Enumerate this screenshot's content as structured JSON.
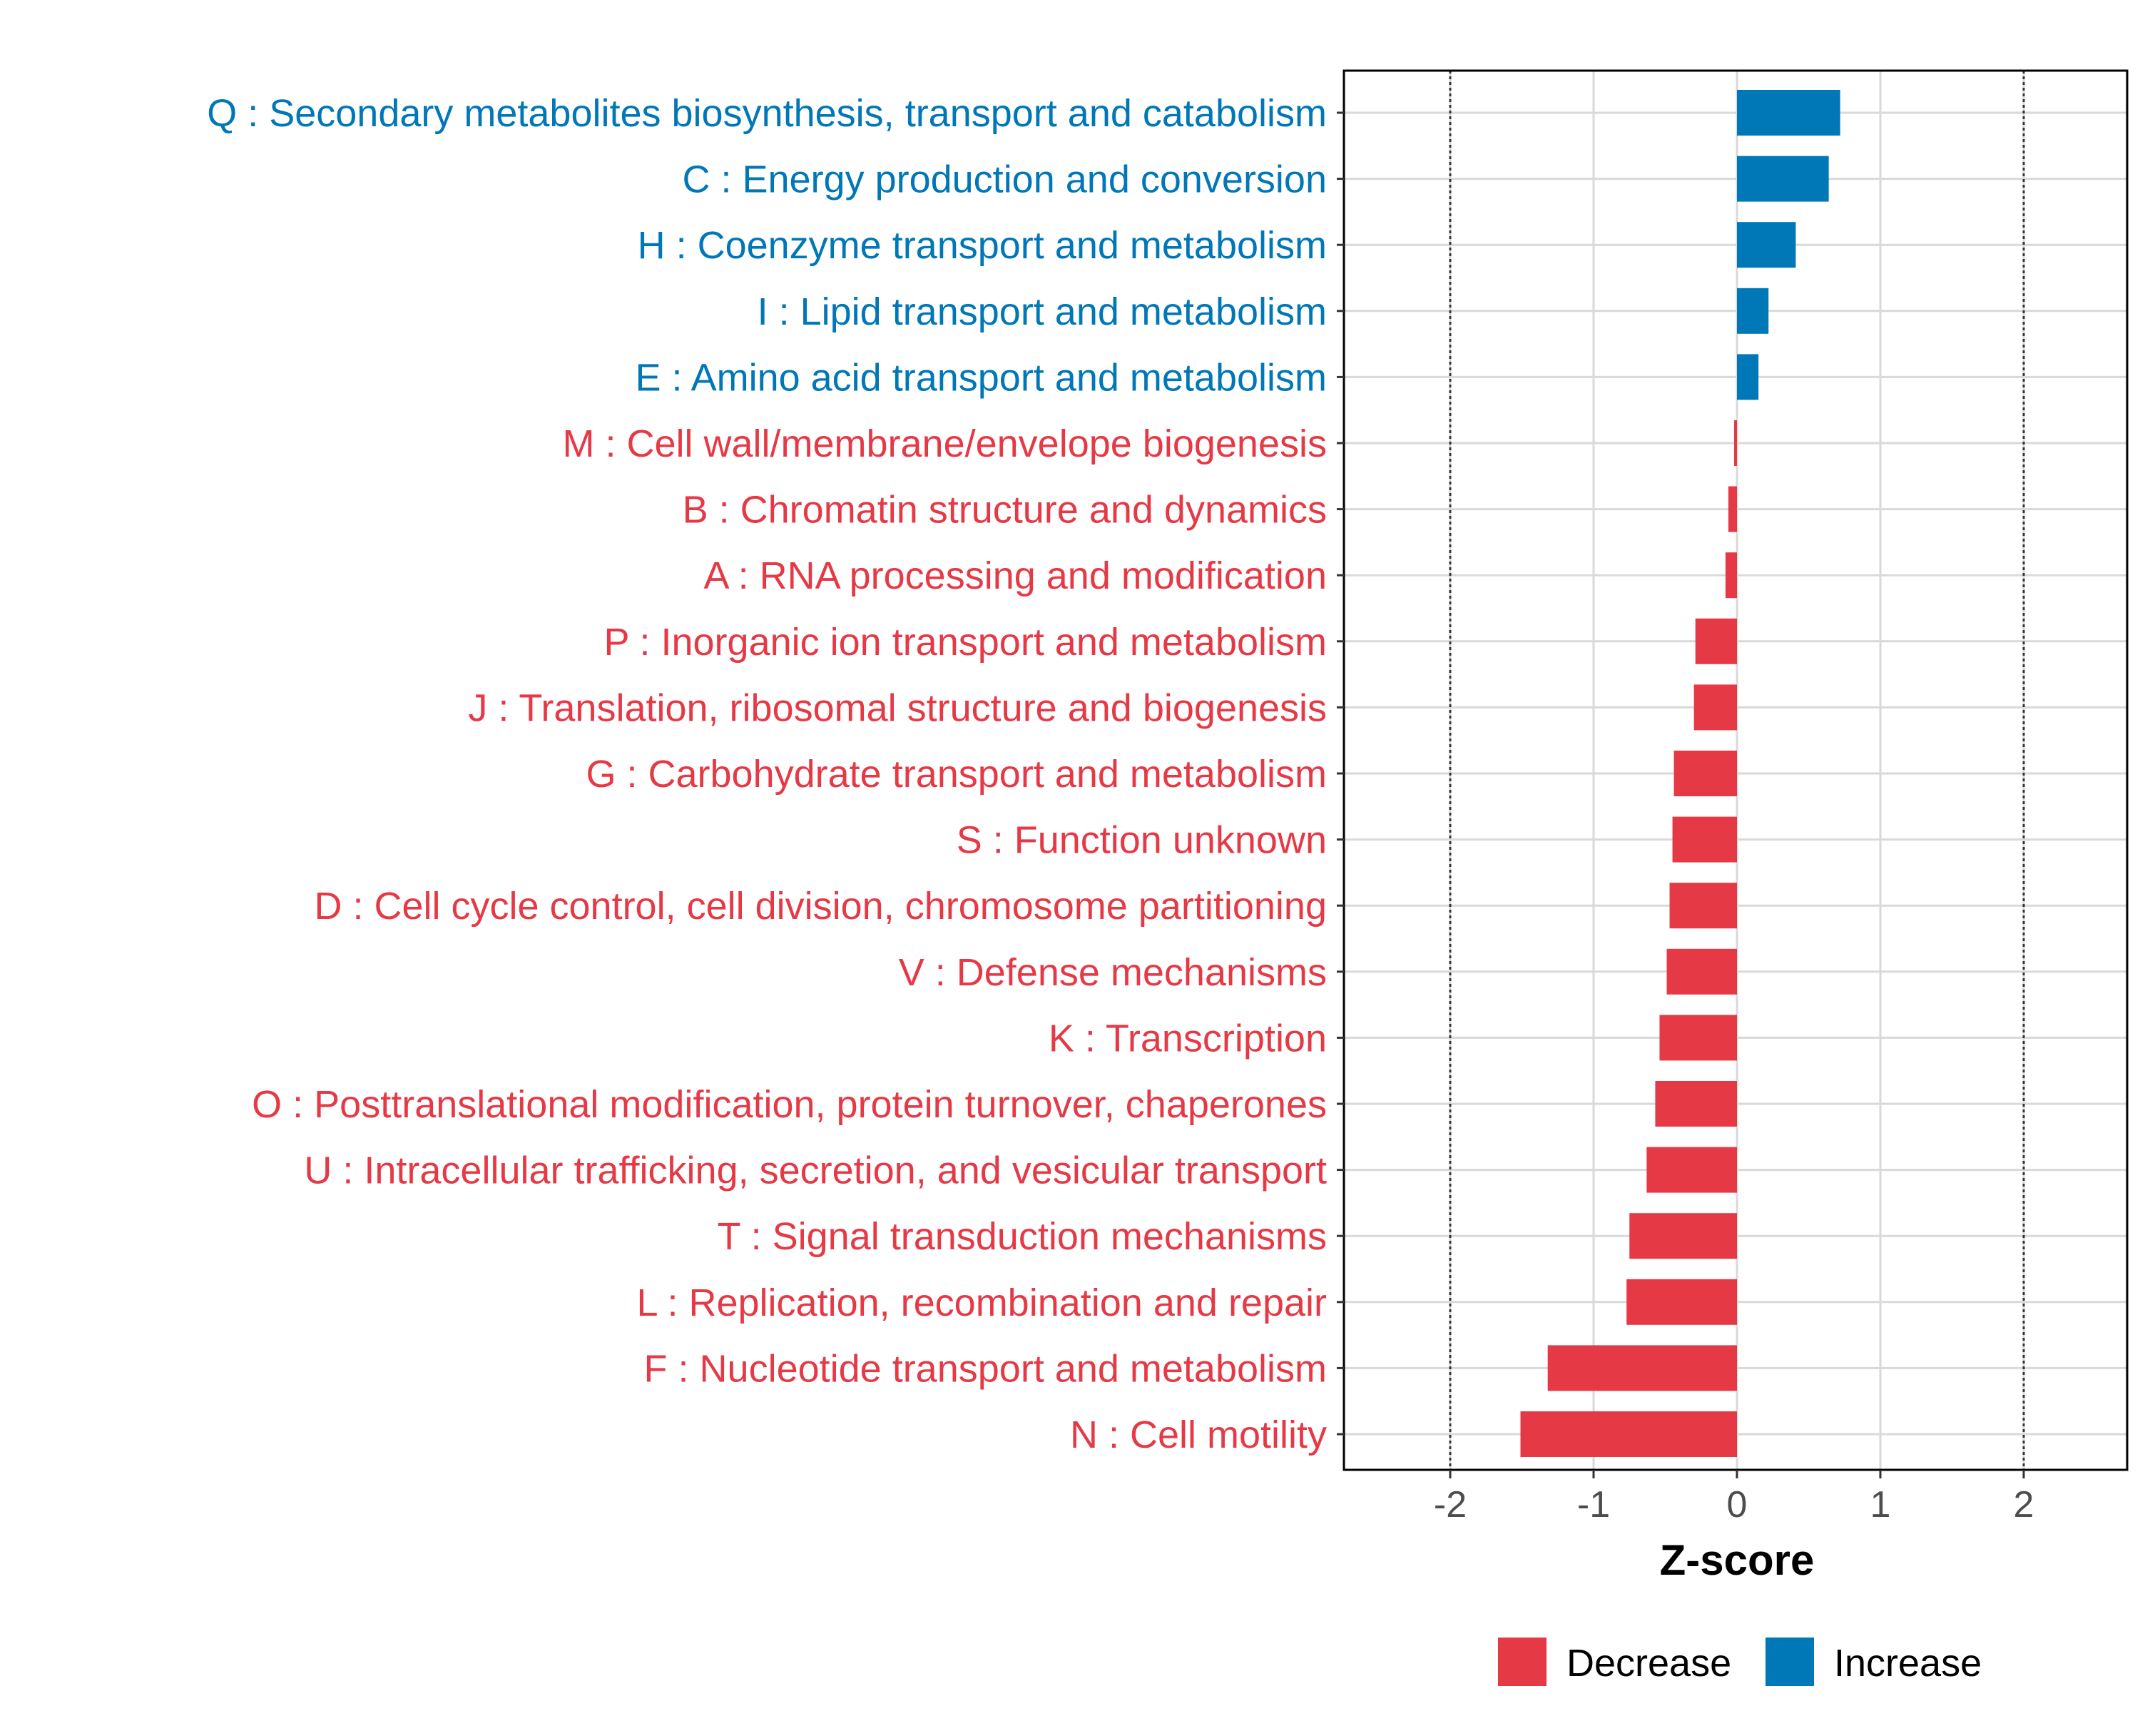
{
  "chart_data": {
    "type": "bar",
    "orientation": "horizontal",
    "xlabel": "Z-score",
    "ylabel": "",
    "xlim": [
      -2.75,
      2.75
    ],
    "xticks": [
      "-2",
      "-1",
      "0",
      "1",
      "2"
    ],
    "xtick_values": [
      -2,
      -1,
      0,
      1,
      2
    ],
    "reference_lines": [
      -2,
      2
    ],
    "grid": true,
    "legend_position": "bottom",
    "legend": [
      {
        "label": "Decrease",
        "color": "#E63946"
      },
      {
        "label": "Increase",
        "color": "#0077B6"
      }
    ],
    "categories": [
      {
        "label": "Q : Secondary metabolites biosynthesis, transport and catabolism",
        "value": 0.72,
        "direction": "Increase"
      },
      {
        "label": "C : Energy production and conversion",
        "value": 0.64,
        "direction": "Increase"
      },
      {
        "label": "H : Coenzyme transport and metabolism",
        "value": 0.41,
        "direction": "Increase"
      },
      {
        "label": "I : Lipid transport and metabolism",
        "value": 0.22,
        "direction": "Increase"
      },
      {
        "label": "E : Amino acid transport and metabolism",
        "value": 0.15,
        "direction": "Increase"
      },
      {
        "label": "M : Cell wall/membrane/envelope biogenesis",
        "value": -0.02,
        "direction": "Decrease"
      },
      {
        "label": "B : Chromatin structure and dynamics",
        "value": -0.06,
        "direction": "Decrease"
      },
      {
        "label": "A : RNA processing and modification",
        "value": -0.08,
        "direction": "Decrease"
      },
      {
        "label": "P : Inorganic ion transport and metabolism",
        "value": -0.29,
        "direction": "Decrease"
      },
      {
        "label": "J : Translation, ribosomal structure and biogenesis",
        "value": -0.3,
        "direction": "Decrease"
      },
      {
        "label": "G : Carbohydrate transport and metabolism",
        "value": -0.44,
        "direction": "Decrease"
      },
      {
        "label": "S : Function unknown",
        "value": -0.45,
        "direction": "Decrease"
      },
      {
        "label": "D : Cell cycle control, cell division, chromosome partitioning",
        "value": -0.47,
        "direction": "Decrease"
      },
      {
        "label": "V : Defense mechanisms",
        "value": -0.49,
        "direction": "Decrease"
      },
      {
        "label": "K : Transcription",
        "value": -0.54,
        "direction": "Decrease"
      },
      {
        "label": "O : Posttranslational modification, protein turnover, chaperones",
        "value": -0.57,
        "direction": "Decrease"
      },
      {
        "label": "U : Intracellular trafficking, secretion, and vesicular transport",
        "value": -0.63,
        "direction": "Decrease"
      },
      {
        "label": "T : Signal transduction mechanisms",
        "value": -0.75,
        "direction": "Decrease"
      },
      {
        "label": "L : Replication, recombination and repair",
        "value": -0.77,
        "direction": "Decrease"
      },
      {
        "label": "F : Nucleotide transport and metabolism",
        "value": -1.32,
        "direction": "Decrease"
      },
      {
        "label": "N : Cell motility",
        "value": -1.51,
        "direction": "Decrease"
      }
    ]
  }
}
